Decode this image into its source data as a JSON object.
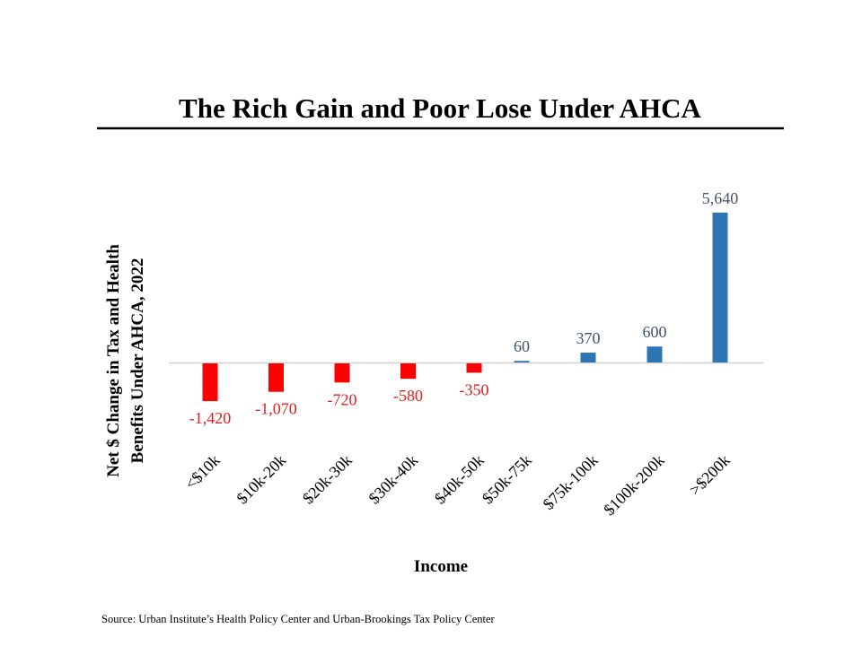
{
  "chart_data": {
    "type": "bar",
    "title": "The Rich Gain and Poor Lose Under AHCA",
    "xlabel": "Income",
    "ylabel": [
      "Net $ Change in Tax and Health",
      "Benefits Under AHCA, 2022"
    ],
    "categories": [
      "<$10k",
      "$10k-20k",
      "$20k-30k",
      "$30k-40k",
      "$40k-50k",
      "$50k-75k",
      "$75k-100k",
      "$100k-200k",
      ">$200k"
    ],
    "values": [
      -1420,
      -1070,
      -720,
      -580,
      -350,
      60,
      370,
      600,
      5640
    ],
    "data_labels": [
      "-1,420",
      "-1,070",
      "-720",
      "-580",
      "-350",
      "60",
      "370",
      "600",
      "5,640"
    ],
    "colors": {
      "negative": "#ff0000",
      "positive": "#2e75b6",
      "negative_label": "#e02020",
      "positive_label": "#44546a"
    },
    "grid": false,
    "legend": "none"
  },
  "source": "Source: Urban Institute’s Health Policy Center and Urban-Brookings Tax Policy Center"
}
